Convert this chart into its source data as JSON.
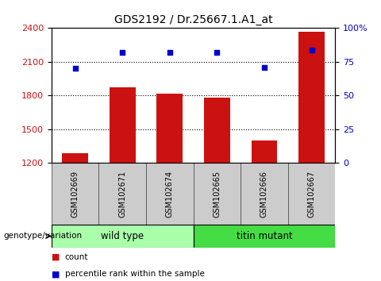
{
  "title": "GDS2192 / Dr.25667.1.A1_at",
  "samples": [
    "GSM102669",
    "GSM102671",
    "GSM102674",
    "GSM102665",
    "GSM102666",
    "GSM102667"
  ],
  "bar_values": [
    1290,
    1870,
    1820,
    1780,
    1400,
    2370
  ],
  "percentile_values": [
    70,
    82,
    82,
    82,
    71,
    84
  ],
  "bar_color": "#cc1111",
  "dot_color": "#0000cc",
  "ylim_left": [
    1200,
    2400
  ],
  "ylim_right": [
    0,
    100
  ],
  "yticks_left": [
    1200,
    1500,
    1800,
    2100,
    2400
  ],
  "yticks_right": [
    0,
    25,
    50,
    75,
    100
  ],
  "ytick_labels_right": [
    "0",
    "25",
    "50",
    "75",
    "100%"
  ],
  "grid_values": [
    1500,
    1800,
    2100
  ],
  "groups": [
    {
      "label": "wild type",
      "indices": [
        0,
        1,
        2
      ],
      "color": "#aaffaa"
    },
    {
      "label": "titin mutant",
      "indices": [
        3,
        4,
        5
      ],
      "color": "#44dd44"
    }
  ],
  "group_label": "genotype/variation",
  "legend_items": [
    {
      "label": "count",
      "color": "#cc1111"
    },
    {
      "label": "percentile rank within the sample",
      "color": "#0000cc"
    }
  ],
  "title_fontsize": 10,
  "bar_width": 0.55,
  "background_plot": "#ffffff",
  "background_xticklabel": "#cccccc"
}
